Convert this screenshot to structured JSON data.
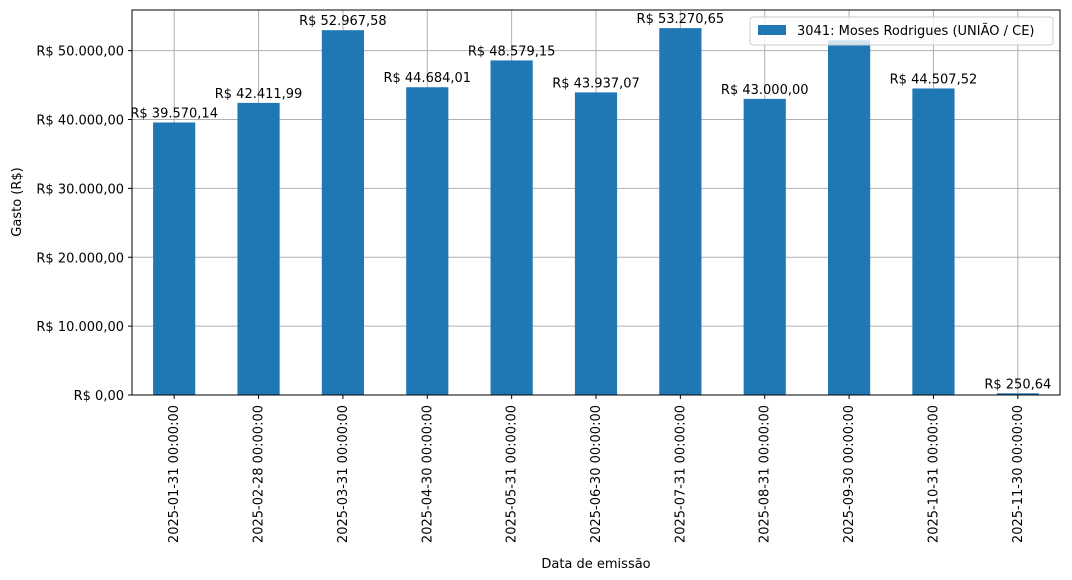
{
  "chart_data": {
    "type": "bar",
    "categories": [
      "2025-01-31 00:00:00",
      "2025-02-28 00:00:00",
      "2025-03-31 00:00:00",
      "2025-04-30 00:00:00",
      "2025-05-31 00:00:00",
      "2025-06-30 00:00:00",
      "2025-07-31 00:00:00",
      "2025-08-31 00:00:00",
      "2025-09-30 00:00:00",
      "2025-10-31 00:00:00",
      "2025-11-30 00:00:00"
    ],
    "series": [
      {
        "name": "3041: Moses Rodrigues (UNIÃO / CE)",
        "values": [
          39570.14,
          42411.99,
          52967.58,
          44684.01,
          48579.15,
          43937.07,
          53270.65,
          43000.0,
          51500.0,
          44507.52,
          250.64
        ],
        "color": "#1f77b4"
      }
    ],
    "data_labels": [
      "R$ 39.570,14",
      "R$ 42.411,99",
      "R$ 52.967,58",
      "R$ 44.684,01",
      "R$ 48.579,15",
      "R$ 43.937,07",
      "R$ 53.270,65",
      "R$ 43.000,00",
      "",
      "R$ 44.507,52",
      "R$ 250,64"
    ],
    "xlabel": "Data de emissão",
    "ylabel": "Gasto (R$)",
    "ylim": [
      0,
      55900
    ],
    "yticks": [
      0,
      10000,
      20000,
      30000,
      40000,
      50000
    ],
    "ytick_labels": [
      "R$ 0,00",
      "R$ 10.000,00",
      "R$ 20.000,00",
      "R$ 30.000,00",
      "R$ 40.000,00",
      "R$ 50.000,00"
    ],
    "grid": true,
    "legend_position": "top-right"
  }
}
